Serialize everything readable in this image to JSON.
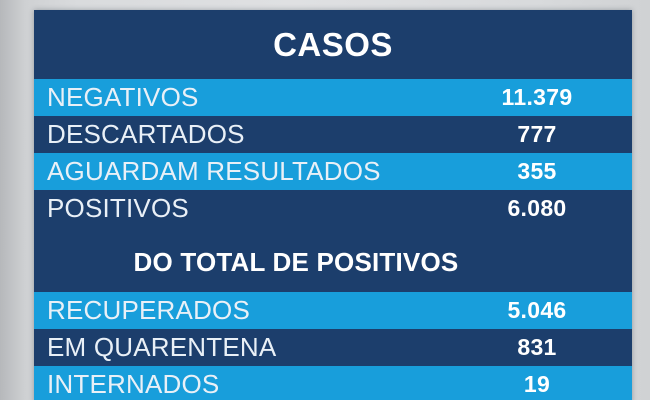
{
  "colors": {
    "navy": "#1c3e6c",
    "light_blue": "#189edb",
    "label_text": "#e9f0f7",
    "value_text": "#ffffff",
    "background_gray": "#d9dbdd"
  },
  "sections": [
    {
      "header": "CASOS",
      "rows": [
        {
          "label": "NEGATIVOS",
          "value": "11.379"
        },
        {
          "label": "DESCARTADOS",
          "value": "777"
        },
        {
          "label": "AGUARDAM RESULTADOS",
          "value": "355"
        },
        {
          "label": "POSITIVOS",
          "value": "6.080"
        }
      ]
    },
    {
      "header": "DO TOTAL DE POSITIVOS",
      "rows": [
        {
          "label": "RECUPERADOS",
          "value": "5.046"
        },
        {
          "label": "EM QUARENTENA",
          "value": "831"
        },
        {
          "label": "INTERNADOS",
          "value": "19"
        }
      ]
    }
  ],
  "chart_data": {
    "type": "table",
    "title": "CASOS",
    "categories": [
      "NEGATIVOS",
      "DESCARTADOS",
      "AGUARDAM RESULTADOS",
      "POSITIVOS",
      "RECUPERADOS",
      "EM QUARENTENA",
      "INTERNADOS"
    ],
    "values": [
      11379,
      777,
      355,
      6080,
      5046,
      831,
      19
    ],
    "values_formatted": [
      "11.379",
      "777",
      "355",
      "6.080",
      "5.046",
      "831",
      "19"
    ],
    "groups": [
      "CASOS",
      "CASOS",
      "CASOS",
      "CASOS",
      "DO TOTAL DE POSITIVOS",
      "DO TOTAL DE POSITIVOS",
      "DO TOTAL DE POSITIVOS"
    ],
    "section_headers": [
      "CASOS",
      "DO TOTAL DE POSITIVOS"
    ],
    "number_format": "pt-BR thousands separator (.)",
    "layout": "two-column striped table, labels left, values centered in right column"
  }
}
